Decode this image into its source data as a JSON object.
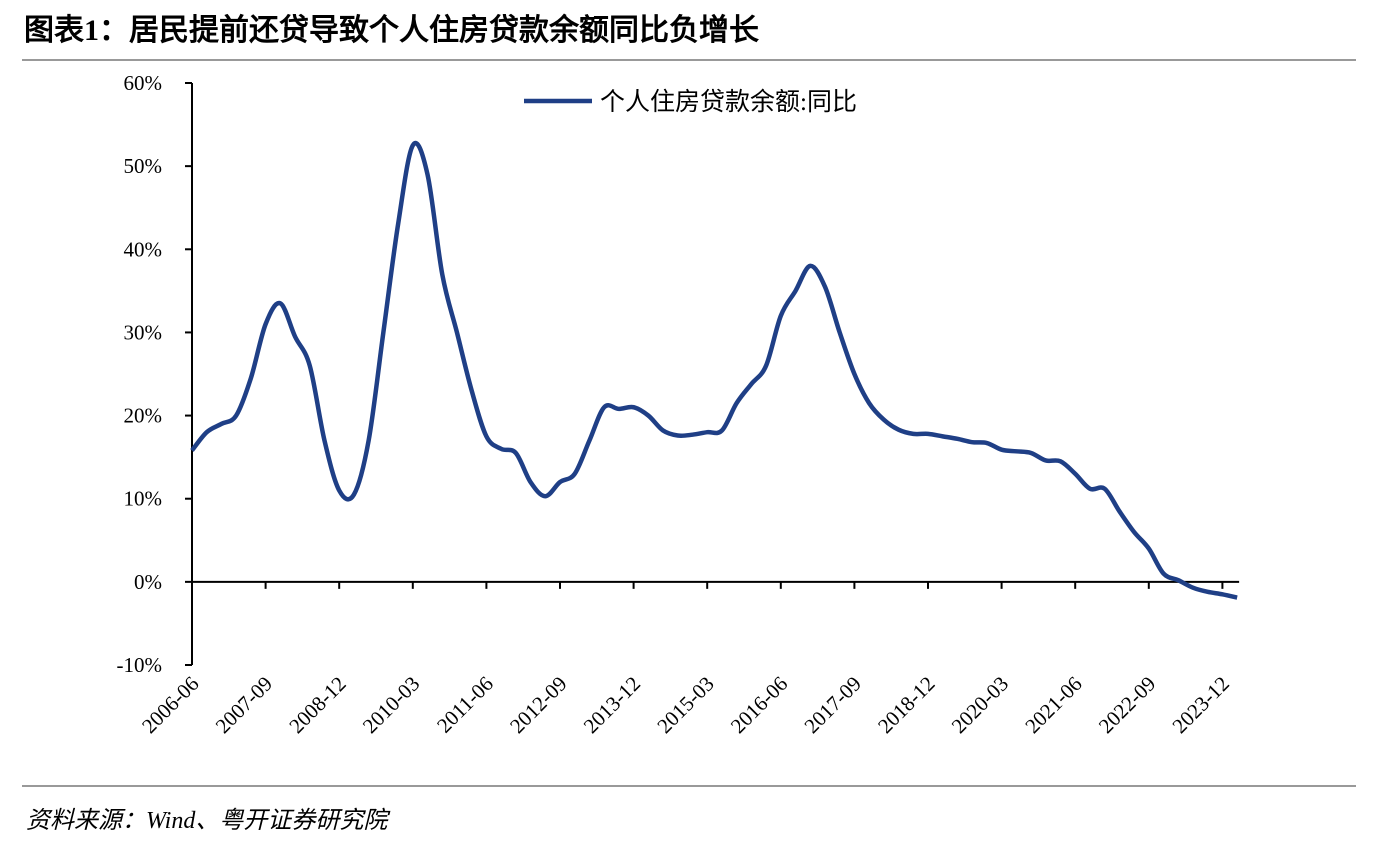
{
  "chart_data": {
    "type": "line",
    "title": "图表1：居民提前还贷导致个人住房贷款余额同比负增长",
    "source": "资料来源：Wind、粤开证券研究院",
    "categories": [
      "2006-06",
      null,
      null,
      null,
      null,
      "2007-09",
      null,
      null,
      null,
      null,
      "2008-12",
      null,
      null,
      null,
      null,
      "2010-03",
      null,
      null,
      null,
      null,
      "2011-06",
      null,
      null,
      null,
      null,
      "2012-09",
      null,
      null,
      null,
      null,
      "2013-12",
      null,
      null,
      null,
      null,
      "2015-03",
      null,
      null,
      null,
      null,
      "2016-06",
      null,
      null,
      null,
      null,
      "2017-09",
      null,
      null,
      null,
      null,
      "2018-12",
      null,
      null,
      null,
      null,
      "2020-03",
      null,
      null,
      null,
      null,
      "2021-06",
      null,
      null,
      null,
      null,
      "2022-09",
      null,
      null,
      null,
      null,
      "2023-12",
      null
    ],
    "series": [
      {
        "name": "个人住房贷款余额:同比",
        "color": "#1f3f86",
        "values": [
          15.8,
          18,
          19,
          20,
          24.5,
          31,
          33.5,
          29.5,
          26,
          17,
          11,
          10.5,
          17,
          30,
          43,
          52.5,
          49,
          37,
          30,
          23,
          17.5,
          16,
          15.5,
          12,
          10.3,
          12,
          13,
          17,
          21,
          20.8,
          21,
          20,
          18.2,
          17.6,
          17.7,
          18,
          18.2,
          21.5,
          23.8,
          26,
          32,
          35,
          38,
          35.5,
          30,
          25,
          21.5,
          19.5,
          18.3,
          17.8,
          17.8,
          17.5,
          17.2,
          16.8,
          16.7,
          15.9,
          15.7,
          15.5,
          14.6,
          14.5,
          13,
          11.2,
          11.2,
          8.5,
          6,
          4,
          1,
          0.2,
          -0.7,
          -1.2,
          -1.5,
          -1.9
        ]
      }
    ],
    "ylim": [
      -10,
      60
    ],
    "yticks": [
      {
        "value": -10,
        "label": "-10%"
      },
      {
        "value": 0,
        "label": "0%"
      },
      {
        "value": 10,
        "label": "10%"
      },
      {
        "value": 20,
        "label": "20%"
      },
      {
        "value": 30,
        "label": "30%"
      },
      {
        "value": 40,
        "label": "40%"
      },
      {
        "value": 50,
        "label": "50%"
      },
      {
        "value": 60,
        "label": "60%"
      }
    ],
    "legend": "top"
  }
}
